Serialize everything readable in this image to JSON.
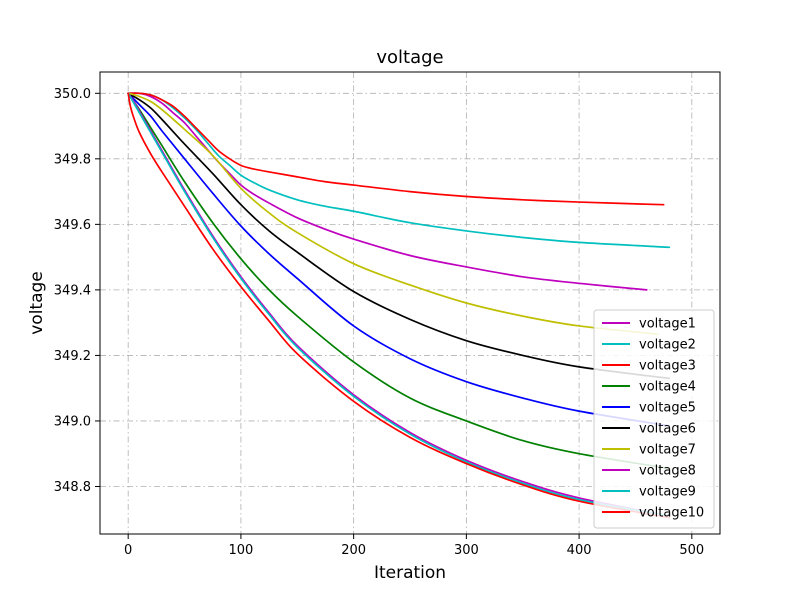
{
  "chart_data": {
    "type": "line",
    "title": "voltage",
    "xlabel": "Iteration",
    "ylabel": "voltage",
    "xlim": [
      -25,
      525
    ],
    "ylim": [
      348.655,
      350.065
    ],
    "xticks": [
      0,
      100,
      200,
      300,
      400,
      500
    ],
    "yticks": [
      348.8,
      349.0,
      349.2,
      349.4,
      349.6,
      349.8,
      350.0
    ],
    "xtick_labels": [
      "0",
      "100",
      "200",
      "300",
      "400",
      "500"
    ],
    "ytick_labels": [
      "348.8",
      "349.0",
      "349.2",
      "349.4",
      "349.6",
      "349.8",
      "350.0"
    ],
    "grid": true,
    "legend": "bottom-right",
    "series": [
      {
        "name": "voltage1",
        "color": "#bf00bf",
        "x": [
          0,
          10,
          20,
          30,
          40,
          50,
          60,
          70,
          80,
          90,
          100,
          110,
          125,
          150,
          175,
          200,
          250,
          300,
          350,
          400,
          460
        ],
        "y": [
          350.0,
          350.0,
          349.99,
          349.97,
          349.94,
          349.91,
          349.87,
          349.83,
          349.79,
          349.755,
          349.72,
          349.695,
          349.665,
          349.62,
          349.585,
          349.555,
          349.505,
          349.47,
          349.44,
          349.42,
          349.4
        ]
      },
      {
        "name": "voltage2",
        "color": "#00bfbf",
        "x": [
          0,
          10,
          20,
          30,
          40,
          50,
          60,
          70,
          80,
          90,
          100,
          110,
          125,
          150,
          175,
          200,
          250,
          300,
          350,
          400,
          480
        ],
        "y": [
          350.0,
          350.0,
          349.995,
          349.98,
          349.955,
          349.925,
          349.89,
          349.85,
          349.81,
          349.78,
          349.75,
          349.73,
          349.705,
          349.675,
          349.655,
          349.64,
          349.605,
          349.58,
          349.56,
          349.545,
          349.53
        ]
      },
      {
        "name": "voltage3",
        "color": "#ff0000",
        "x": [
          0,
          10,
          20,
          30,
          40,
          50,
          60,
          70,
          80,
          90,
          100,
          110,
          125,
          150,
          175,
          200,
          250,
          300,
          350,
          400,
          475
        ],
        "y": [
          350.0,
          350.0,
          349.995,
          349.98,
          349.96,
          349.93,
          349.895,
          349.86,
          349.825,
          349.8,
          349.78,
          349.77,
          349.76,
          349.745,
          349.73,
          349.72,
          349.7,
          349.685,
          349.675,
          349.668,
          349.66
        ]
      },
      {
        "name": "voltage4",
        "color": "#008000",
        "x": [
          0,
          10,
          20,
          30,
          50,
          75,
          100,
          125,
          150,
          200,
          250,
          300,
          350,
          400,
          480
        ],
        "y": [
          350.0,
          349.95,
          349.895,
          349.84,
          349.73,
          349.605,
          349.495,
          349.4,
          349.32,
          349.18,
          349.07,
          349.0,
          348.94,
          348.9,
          348.855
        ]
      },
      {
        "name": "voltage5",
        "color": "#0000ff",
        "x": [
          0,
          10,
          20,
          30,
          50,
          75,
          100,
          125,
          150,
          200,
          250,
          300,
          350,
          400,
          480
        ],
        "y": [
          350.0,
          349.965,
          349.93,
          349.885,
          349.8,
          349.695,
          349.595,
          349.51,
          349.435,
          349.29,
          349.19,
          349.12,
          349.07,
          349.03,
          348.985
        ]
      },
      {
        "name": "voltage6",
        "color": "#000000",
        "x": [
          0,
          10,
          20,
          30,
          50,
          75,
          100,
          125,
          150,
          200,
          250,
          300,
          350,
          400,
          480
        ],
        "y": [
          350.0,
          349.98,
          349.955,
          349.92,
          349.845,
          349.755,
          349.66,
          349.58,
          349.515,
          349.395,
          349.31,
          349.245,
          349.2,
          349.165,
          349.13
        ]
      },
      {
        "name": "voltage7",
        "color": "#bfbf00",
        "x": [
          0,
          10,
          20,
          30,
          50,
          75,
          100,
          125,
          150,
          200,
          250,
          300,
          350,
          400,
          470
        ],
        "y": [
          350.0,
          349.99,
          349.975,
          349.95,
          349.89,
          349.81,
          349.71,
          349.635,
          349.575,
          349.48,
          349.415,
          349.36,
          349.32,
          349.29,
          349.265
        ]
      },
      {
        "name": "voltage8",
        "color": "#bf00bf",
        "x": [
          0,
          5,
          10,
          20,
          30,
          50,
          75,
          100,
          125,
          150,
          200,
          250,
          300,
          350,
          400,
          480
        ],
        "y": [
          350.0,
          349.975,
          349.945,
          349.885,
          349.825,
          349.705,
          349.565,
          349.44,
          349.33,
          349.23,
          349.08,
          348.965,
          348.88,
          348.815,
          348.765,
          348.71
        ]
      },
      {
        "name": "voltage9",
        "color": "#00bfbf",
        "x": [
          0,
          5,
          10,
          20,
          30,
          50,
          75,
          100,
          125,
          150,
          200,
          250,
          300,
          350,
          400,
          480
        ],
        "y": [
          350.0,
          349.97,
          349.94,
          349.88,
          349.82,
          349.7,
          349.56,
          349.435,
          349.325,
          349.225,
          349.075,
          348.96,
          348.875,
          348.81,
          348.76,
          348.71
        ]
      },
      {
        "name": "voltage10",
        "color": "#ff0000",
        "x": [
          0,
          2,
          5,
          10,
          20,
          30,
          50,
          75,
          100,
          125,
          150,
          200,
          250,
          300,
          350,
          400,
          480
        ],
        "y": [
          350.0,
          349.96,
          349.925,
          349.88,
          349.815,
          349.76,
          349.655,
          349.525,
          349.41,
          349.305,
          349.205,
          349.06,
          348.95,
          348.87,
          348.805,
          348.755,
          348.705
        ]
      }
    ]
  }
}
